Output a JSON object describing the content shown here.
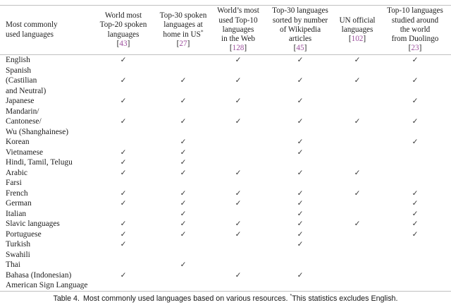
{
  "colors": {
    "citation": "#9c4f9d",
    "text": "#1c1c1c",
    "rule": "#c0c0c0",
    "check": "#333333"
  },
  "table": {
    "first_column_header": {
      "lines": [
        "Most commonly",
        "used languages"
      ]
    },
    "columns": [
      {
        "key": "top20-spoken",
        "lines": [
          "World most",
          "Top-20 spoken",
          "languages"
        ],
        "cite": "43"
      },
      {
        "key": "us-home",
        "lines": [
          "Top-30 spoken",
          "languages at",
          "home in US*"
        ],
        "cite": "27"
      },
      {
        "key": "web",
        "lines": [
          "World’s most",
          "used Top-10",
          "languages",
          "in the Web"
        ],
        "cite": "128"
      },
      {
        "key": "wikipedia",
        "lines": [
          "Top-30 languages",
          "sorted by number",
          "of Wikipedia",
          "articles"
        ],
        "cite": "45"
      },
      {
        "key": "un-official",
        "lines": [
          "UN official",
          "languages"
        ],
        "cite": "102"
      },
      {
        "key": "duolingo",
        "lines": [
          "Top-10 languages",
          "studied around",
          "the world",
          "from Duolingo"
        ],
        "cite": "23"
      }
    ],
    "check_glyph": "✓",
    "rows": [
      {
        "name_lines": [
          "English"
        ],
        "checks": [
          1,
          0,
          1,
          1,
          1,
          1
        ]
      },
      {
        "name_lines": [
          "Spanish",
          "(Castilian",
          "and Neutral)"
        ],
        "checks": [
          1,
          1,
          1,
          1,
          1,
          1
        ]
      },
      {
        "name_lines": [
          "Japanese"
        ],
        "checks": [
          1,
          1,
          1,
          1,
          0,
          1
        ]
      },
      {
        "name_lines": [
          "Mandarin/",
          "Cantonese/",
          "Wu (Shanghainese)"
        ],
        "checks": [
          1,
          1,
          1,
          1,
          1,
          1
        ]
      },
      {
        "name_lines": [
          "Korean"
        ],
        "checks": [
          0,
          1,
          0,
          1,
          0,
          1
        ]
      },
      {
        "name_lines": [
          "Vietnamese"
        ],
        "checks": [
          1,
          1,
          0,
          1,
          0,
          0
        ]
      },
      {
        "name_lines": [
          "Hindi, Tamil, Telugu"
        ],
        "checks": [
          1,
          1,
          0,
          0,
          0,
          0
        ]
      },
      {
        "name_lines": [
          "Arabic"
        ],
        "checks": [
          1,
          1,
          1,
          1,
          1,
          0
        ]
      },
      {
        "name_lines": [
          "Farsi"
        ],
        "checks": [
          0,
          0,
          0,
          0,
          0,
          0
        ]
      },
      {
        "name_lines": [
          "French"
        ],
        "checks": [
          1,
          1,
          1,
          1,
          1,
          1
        ]
      },
      {
        "name_lines": [
          "German"
        ],
        "checks": [
          1,
          1,
          1,
          1,
          0,
          1
        ]
      },
      {
        "name_lines": [
          "Italian"
        ],
        "checks": [
          0,
          1,
          0,
          1,
          0,
          1
        ]
      },
      {
        "name_lines": [
          "Slavic languages"
        ],
        "checks": [
          1,
          1,
          1,
          1,
          1,
          1
        ]
      },
      {
        "name_lines": [
          "Portuguese"
        ],
        "checks": [
          1,
          1,
          1,
          1,
          0,
          1
        ]
      },
      {
        "name_lines": [
          "Turkish"
        ],
        "checks": [
          1,
          0,
          0,
          1,
          0,
          0
        ]
      },
      {
        "name_lines": [
          "Swahili"
        ],
        "checks": [
          0,
          0,
          0,
          0,
          0,
          0
        ]
      },
      {
        "name_lines": [
          "Thai"
        ],
        "checks": [
          0,
          1,
          0,
          0,
          0,
          0
        ]
      },
      {
        "name_lines": [
          "Bahasa (Indonesian)"
        ],
        "checks": [
          1,
          0,
          1,
          1,
          0,
          0
        ]
      },
      {
        "name_lines": [
          "American Sign Language"
        ],
        "checks": [
          0,
          0,
          0,
          0,
          0,
          0
        ]
      }
    ]
  },
  "caption": {
    "label": "Table 4.",
    "text": "Most commonly used languages based on various resources.",
    "note_star": "*",
    "note": "This statistics excludes English."
  }
}
